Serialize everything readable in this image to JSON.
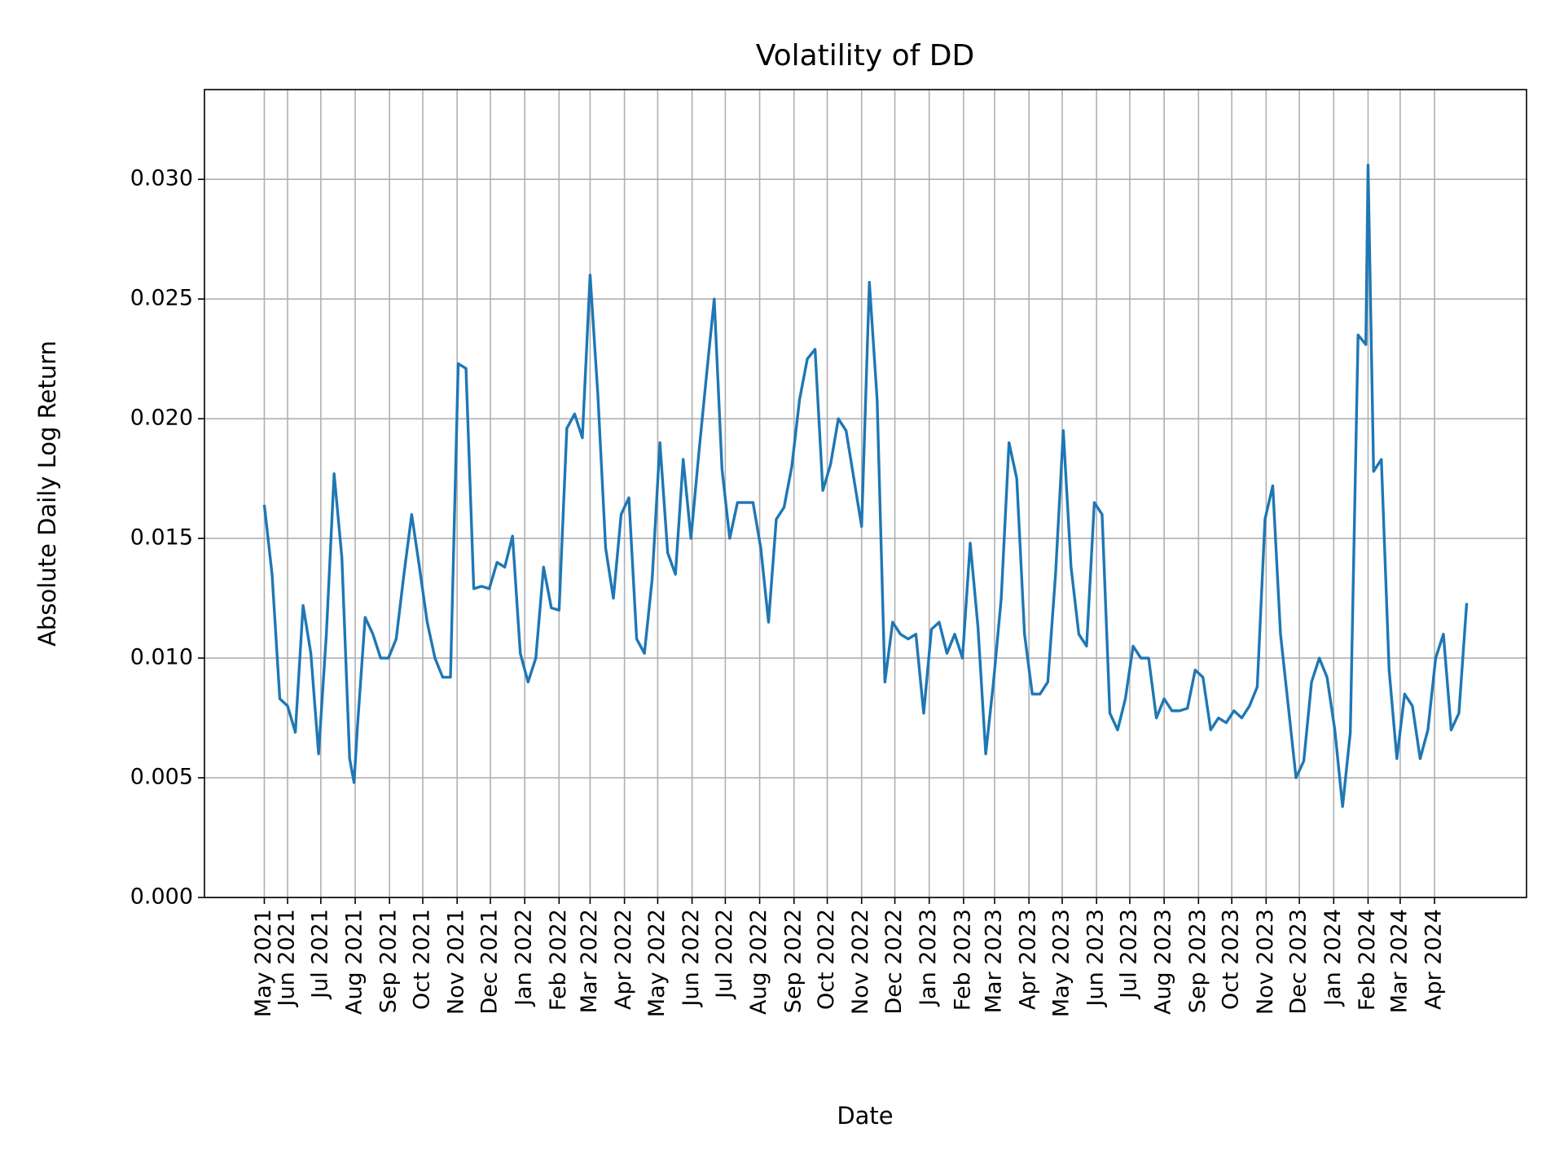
{
  "chart_data": {
    "type": "line",
    "title": "Volatility of DD",
    "x_label": "Date",
    "y_label": "Absolute Daily Log Return",
    "color": "#1f77b4",
    "grid": true,
    "xlim": [
      "2021-03-18",
      "2024-06-23"
    ],
    "ylim": [
      0,
      0.03375
    ],
    "yticks": [
      {
        "value": 0,
        "label": "0.000"
      },
      {
        "value": 0.005,
        "label": "0.005"
      },
      {
        "value": 0.01,
        "label": "0.010"
      },
      {
        "value": 0.015,
        "label": "0.015"
      },
      {
        "value": 0.02,
        "label": "0.020"
      },
      {
        "value": 0.025,
        "label": "0.025"
      },
      {
        "value": 0.03,
        "label": "0.030"
      }
    ],
    "xticks": [
      {
        "value": "2021-05-11",
        "label": "May 2021"
      },
      {
        "value": "2021-06-01",
        "label": "Jun 2021"
      },
      {
        "value": "2021-07-01",
        "label": "Jul 2021"
      },
      {
        "value": "2021-08-01",
        "label": "Aug 2021"
      },
      {
        "value": "2021-09-01",
        "label": "Sep 2021"
      },
      {
        "value": "2021-10-01",
        "label": "Oct 2021"
      },
      {
        "value": "2021-11-01",
        "label": "Nov 2021"
      },
      {
        "value": "2021-12-01",
        "label": "Dec 2021"
      },
      {
        "value": "2022-01-01",
        "label": "Jan 2022"
      },
      {
        "value": "2022-02-01",
        "label": "Feb 2022"
      },
      {
        "value": "2022-03-01",
        "label": "Mar 2022"
      },
      {
        "value": "2022-04-01",
        "label": "Apr 2022"
      },
      {
        "value": "2022-05-01",
        "label": "May 2022"
      },
      {
        "value": "2022-06-01",
        "label": "Jun 2022"
      },
      {
        "value": "2022-07-01",
        "label": "Jul 2022"
      },
      {
        "value": "2022-08-01",
        "label": "Aug 2022"
      },
      {
        "value": "2022-09-01",
        "label": "Sep 2022"
      },
      {
        "value": "2022-10-01",
        "label": "Oct 2022"
      },
      {
        "value": "2022-11-01",
        "label": "Nov 2022"
      },
      {
        "value": "2022-12-01",
        "label": "Dec 2022"
      },
      {
        "value": "2023-01-01",
        "label": "Jan 2023"
      },
      {
        "value": "2023-02-01",
        "label": "Feb 2023"
      },
      {
        "value": "2023-03-01",
        "label": "Mar 2023"
      },
      {
        "value": "2023-04-01",
        "label": "Apr 2023"
      },
      {
        "value": "2023-05-01",
        "label": "May 2023"
      },
      {
        "value": "2023-06-01",
        "label": "Jun 2023"
      },
      {
        "value": "2023-07-01",
        "label": "Jul 2023"
      },
      {
        "value": "2023-08-01",
        "label": "Aug 2023"
      },
      {
        "value": "2023-09-01",
        "label": "Sep 2023"
      },
      {
        "value": "2023-10-01",
        "label": "Oct 2023"
      },
      {
        "value": "2023-11-01",
        "label": "Nov 2023"
      },
      {
        "value": "2023-12-01",
        "label": "Dec 2023"
      },
      {
        "value": "2024-01-01",
        "label": "Jan 2024"
      },
      {
        "value": "2024-02-01",
        "label": "Feb 2024"
      },
      {
        "value": "2024-03-01",
        "label": "Mar 2024"
      },
      {
        "value": "2024-04-01",
        "label": "Apr 2024"
      }
    ],
    "x": [
      "2021-05-11",
      "2021-05-18",
      "2021-05-25",
      "2021-06-01",
      "2021-06-08",
      "2021-06-15",
      "2021-06-22",
      "2021-06-29",
      "2021-07-06",
      "2021-07-13",
      "2021-07-20",
      "2021-07-27",
      "2021-07-31",
      "2021-08-03",
      "2021-08-10",
      "2021-08-17",
      "2021-08-24",
      "2021-08-31",
      "2021-09-07",
      "2021-09-14",
      "2021-09-21",
      "2021-09-28",
      "2021-10-05",
      "2021-10-12",
      "2021-10-19",
      "2021-10-26",
      "2021-11-02",
      "2021-11-09",
      "2021-11-16",
      "2021-11-23",
      "2021-11-30",
      "2021-12-07",
      "2021-12-14",
      "2021-12-21",
      "2021-12-28",
      "2022-01-04",
      "2022-01-11",
      "2022-01-18",
      "2022-01-25",
      "2022-02-01",
      "2022-02-08",
      "2022-02-15",
      "2022-02-22",
      "2022-03-01",
      "2022-03-08",
      "2022-03-15",
      "2022-03-22",
      "2022-03-29",
      "2022-04-05",
      "2022-04-12",
      "2022-04-19",
      "2022-04-26",
      "2022-05-03",
      "2022-05-10",
      "2022-05-17",
      "2022-05-24",
      "2022-05-31",
      "2022-06-07",
      "2022-06-14",
      "2022-06-21",
      "2022-06-28",
      "2022-07-05",
      "2022-07-12",
      "2022-07-19",
      "2022-07-26",
      "2022-08-02",
      "2022-08-09",
      "2022-08-16",
      "2022-08-23",
      "2022-08-30",
      "2022-09-06",
      "2022-09-13",
      "2022-09-20",
      "2022-09-27",
      "2022-10-04",
      "2022-10-11",
      "2022-10-18",
      "2022-10-25",
      "2022-11-01",
      "2022-11-08",
      "2022-11-15",
      "2022-11-22",
      "2022-11-29",
      "2022-12-06",
      "2022-12-13",
      "2022-12-20",
      "2022-12-27",
      "2023-01-03",
      "2023-01-10",
      "2023-01-17",
      "2023-01-24",
      "2023-01-31",
      "2023-02-07",
      "2023-02-14",
      "2023-02-21",
      "2023-02-28",
      "2023-03-07",
      "2023-03-14",
      "2023-03-21",
      "2023-03-28",
      "2023-04-04",
      "2023-04-11",
      "2023-04-18",
      "2023-04-25",
      "2023-05-02",
      "2023-05-09",
      "2023-05-16",
      "2023-05-23",
      "2023-05-30",
      "2023-06-06",
      "2023-06-13",
      "2023-06-20",
      "2023-06-27",
      "2023-07-04",
      "2023-07-11",
      "2023-07-18",
      "2023-07-25",
      "2023-08-01",
      "2023-08-08",
      "2023-08-15",
      "2023-08-22",
      "2023-08-29",
      "2023-09-05",
      "2023-09-12",
      "2023-09-19",
      "2023-09-26",
      "2023-10-03",
      "2023-10-10",
      "2023-10-17",
      "2023-10-24",
      "2023-10-31",
      "2023-11-07",
      "2023-11-14",
      "2023-11-21",
      "2023-11-28",
      "2023-12-05",
      "2023-12-12",
      "2023-12-19",
      "2023-12-26",
      "2024-01-02",
      "2024-01-09",
      "2024-01-16",
      "2024-01-23",
      "2024-01-30",
      "2024-02-01",
      "2024-02-06",
      "2024-02-13",
      "2024-02-20",
      "2024-02-27",
      "2024-03-05",
      "2024-03-12",
      "2024-03-19",
      "2024-03-26",
      "2024-04-02",
      "2024-04-09",
      "2024-04-16",
      "2024-04-23",
      "2024-04-30"
    ],
    "values": [
      0.0164,
      0.0135,
      0.0083,
      0.008,
      0.0069,
      0.0122,
      0.0102,
      0.006,
      0.011,
      0.0177,
      0.0142,
      0.0058,
      0.0048,
      0.0071,
      0.0117,
      0.011,
      0.01,
      0.01,
      0.0108,
      0.0135,
      0.016,
      0.0138,
      0.0115,
      0.01,
      0.0092,
      0.0092,
      0.0223,
      0.0221,
      0.0129,
      0.013,
      0.0129,
      0.014,
      0.0138,
      0.0151,
      0.0102,
      0.009,
      0.01,
      0.0138,
      0.0121,
      0.012,
      0.0196,
      0.0202,
      0.0192,
      0.026,
      0.021,
      0.0146,
      0.0125,
      0.016,
      0.0167,
      0.0108,
      0.0102,
      0.0133,
      0.019,
      0.0144,
      0.0135,
      0.0183,
      0.015,
      0.0185,
      0.0218,
      0.025,
      0.0179,
      0.015,
      0.0165,
      0.0165,
      0.0165,
      0.0146,
      0.0115,
      0.0158,
      0.0163,
      0.018,
      0.0208,
      0.0225,
      0.0229,
      0.017,
      0.0181,
      0.02,
      0.0195,
      0.0175,
      0.0155,
      0.0257,
      0.0208,
      0.009,
      0.0115,
      0.011,
      0.0108,
      0.011,
      0.0077,
      0.0112,
      0.0115,
      0.0102,
      0.011,
      0.01,
      0.0148,
      0.0113,
      0.006,
      0.009,
      0.0125,
      0.019,
      0.0175,
      0.011,
      0.0085,
      0.0085,
      0.009,
      0.0135,
      0.0195,
      0.0138,
      0.011,
      0.0105,
      0.0165,
      0.016,
      0.0077,
      0.007,
      0.0083,
      0.0105,
      0.01,
      0.01,
      0.0075,
      0.0083,
      0.0078,
      0.0078,
      0.0079,
      0.0095,
      0.0092,
      0.007,
      0.0075,
      0.0073,
      0.0078,
      0.0075,
      0.008,
      0.0088,
      0.0158,
      0.0172,
      0.011,
      0.008,
      0.005,
      0.0057,
      0.009,
      0.01,
      0.0092,
      0.007,
      0.0038,
      0.0069,
      0.0235,
      0.0231,
      0.0306,
      0.0178,
      0.0183,
      0.0095,
      0.0058,
      0.0085,
      0.008,
      0.0058,
      0.007,
      0.01,
      0.011,
      0.007,
      0.0077,
      0.0123
    ]
  }
}
